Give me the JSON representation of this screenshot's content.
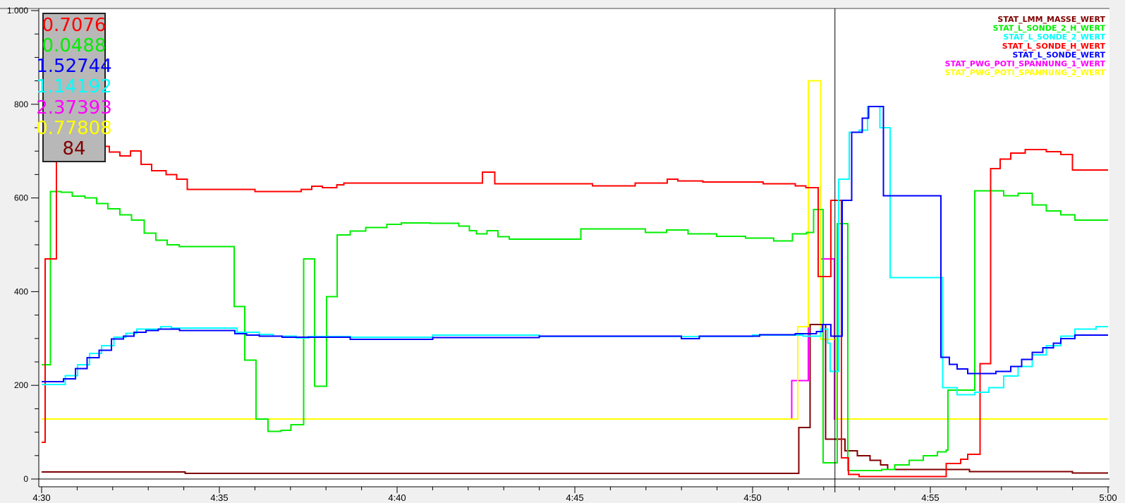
{
  "chart_data": {
    "type": "line",
    "step": true,
    "title": "",
    "xlabel": "",
    "ylabel": "",
    "xlim": [
      "4:30:00",
      "5:00:00"
    ],
    "ylim": [
      0,
      1000
    ],
    "x_ticks": [
      "4:30",
      "4:35",
      "4:40",
      "4:45",
      "4:50",
      "4:55",
      "5:00"
    ],
    "y_ticks": [
      {
        "value": 0,
        "label": "0"
      },
      {
        "value": 200,
        "label": "200"
      },
      {
        "value": 400,
        "label": "400"
      },
      {
        "value": 600,
        "label": "600"
      },
      {
        "value": 800,
        "label": "800"
      },
      {
        "value": 1000,
        "label": "1.000"
      }
    ],
    "grid": false,
    "legend_position": "top-right",
    "cursor": {
      "time": "4:52:19",
      "values": [
        {
          "text": "0.7076",
          "color": "#ff0000"
        },
        {
          "text": "0.0488",
          "color": "#00ee00"
        },
        {
          "text": "1.52744",
          "color": "#0000ff"
        },
        {
          "text": "1.14192",
          "color": "#00ffff"
        },
        {
          "text": "2.37393",
          "color": "#ff00ff"
        },
        {
          "text": "0.77808",
          "color": "#ffff00"
        },
        {
          "text": "84",
          "color": "#800000"
        }
      ]
    },
    "series": [
      {
        "name": "STAT_LMM_MASSE_WERT",
        "color": "#800000",
        "points": [
          [
            "4:30:00",
            15
          ],
          [
            "4:34:02",
            12
          ],
          [
            "4:51:18",
            110
          ],
          [
            "4:51:37",
            330
          ],
          [
            "4:52:03",
            85
          ],
          [
            "4:52:36",
            60
          ],
          [
            "4:52:57",
            50
          ],
          [
            "4:53:18",
            40
          ],
          [
            "4:53:36",
            30
          ],
          [
            "4:53:48",
            20
          ],
          [
            "4:56:06",
            16
          ],
          [
            "4:59:00",
            13
          ],
          [
            "5:00:00",
            13
          ]
        ]
      },
      {
        "name": "STAT_L_SONDE_2_H_WERT",
        "color": "#00ee00",
        "points": [
          [
            "4:30:00",
            244
          ],
          [
            "4:30:15",
            614
          ],
          [
            "4:30:33",
            612
          ],
          [
            "4:30:52",
            604
          ],
          [
            "4:31:13",
            600
          ],
          [
            "4:31:33",
            588
          ],
          [
            "4:31:52",
            577
          ],
          [
            "4:32:12",
            564
          ],
          [
            "4:32:32",
            553
          ],
          [
            "4:32:53",
            525
          ],
          [
            "4:33:13",
            510
          ],
          [
            "4:33:32",
            500
          ],
          [
            "4:33:52",
            496
          ],
          [
            "4:35:25",
            368
          ],
          [
            "4:35:43",
            254
          ],
          [
            "4:36:02",
            128
          ],
          [
            "4:36:22",
            102
          ],
          [
            "4:36:44",
            104
          ],
          [
            "4:37:01",
            116
          ],
          [
            "4:37:22",
            470
          ],
          [
            "4:37:41",
            198
          ],
          [
            "4:38:01",
            389
          ],
          [
            "4:38:19",
            521
          ],
          [
            "4:38:41",
            529
          ],
          [
            "4:39:07",
            537
          ],
          [
            "4:39:43",
            544
          ],
          [
            "4:40:07",
            547
          ],
          [
            "4:40:56",
            546
          ],
          [
            "4:41:44",
            540
          ],
          [
            "4:42:02",
            530
          ],
          [
            "4:42:14",
            523
          ],
          [
            "4:42:32",
            530
          ],
          [
            "4:42:50",
            517
          ],
          [
            "4:43:09",
            512
          ],
          [
            "4:45:10",
            534
          ],
          [
            "4:46:59",
            526
          ],
          [
            "4:47:35",
            532
          ],
          [
            "4:48:11",
            523
          ],
          [
            "4:48:59",
            518
          ],
          [
            "4:49:48",
            514
          ],
          [
            "4:50:36",
            508
          ],
          [
            "4:51:07",
            523
          ],
          [
            "4:51:31",
            526
          ],
          [
            "4:51:43",
            575
          ],
          [
            "4:51:59",
            35
          ],
          [
            "4:52:23",
            545
          ],
          [
            "4:52:41",
            18
          ],
          [
            "4:53:38",
            20
          ],
          [
            "4:54:00",
            30
          ],
          [
            "4:54:24",
            40
          ],
          [
            "4:54:48",
            50
          ],
          [
            "4:55:12",
            58
          ],
          [
            "4:55:27",
            62
          ],
          [
            "4:55:30",
            190
          ],
          [
            "4:56:15",
            615
          ],
          [
            "4:57:04",
            605
          ],
          [
            "4:57:28",
            610
          ],
          [
            "4:57:52",
            585
          ],
          [
            "4:58:16",
            572
          ],
          [
            "4:58:40",
            564
          ],
          [
            "4:59:04",
            553
          ],
          [
            "5:00:00",
            553
          ]
        ]
      },
      {
        "name": "STAT_L_SONDE_2_WERT",
        "color": "#00ffff",
        "points": [
          [
            "4:30:00",
            202
          ],
          [
            "4:30:40",
            221
          ],
          [
            "4:31:01",
            244
          ],
          [
            "4:31:21",
            268
          ],
          [
            "4:31:41",
            285
          ],
          [
            "4:32:02",
            303
          ],
          [
            "4:32:22",
            311
          ],
          [
            "4:32:41",
            320
          ],
          [
            "4:33:21",
            325
          ],
          [
            "4:33:39",
            322
          ],
          [
            "4:35:30",
            313
          ],
          [
            "4:36:07",
            309
          ],
          [
            "4:36:31",
            305
          ],
          [
            "4:37:10",
            301
          ],
          [
            "4:37:30",
            304
          ],
          [
            "4:38:41",
            303
          ],
          [
            "4:41:00",
            307
          ],
          [
            "4:44:00",
            304
          ],
          [
            "4:50:00",
            307
          ],
          [
            "4:51:25",
            305
          ],
          [
            "4:51:55",
            320
          ],
          [
            "4:52:07",
            290
          ],
          [
            "4:52:11",
            230
          ],
          [
            "4:52:25",
            640
          ],
          [
            "4:52:43",
            740
          ],
          [
            "4:53:00",
            745
          ],
          [
            "4:53:14",
            795
          ],
          [
            "4:53:35",
            750
          ],
          [
            "4:53:52",
            430
          ],
          [
            "4:55:21",
            195
          ],
          [
            "4:55:45",
            180
          ],
          [
            "4:56:15",
            185
          ],
          [
            "4:56:39",
            195
          ],
          [
            "4:57:04",
            220
          ],
          [
            "4:57:28",
            240
          ],
          [
            "4:57:52",
            265
          ],
          [
            "4:58:16",
            285
          ],
          [
            "4:58:40",
            305
          ],
          [
            "4:59:04",
            320
          ],
          [
            "4:59:40",
            325
          ],
          [
            "5:00:00",
            325
          ]
        ]
      },
      {
        "name": "STAT_L_SONDE_H_WERT",
        "color": "#ff0000",
        "points": [
          [
            "4:30:00",
            78
          ],
          [
            "4:30:06",
            470
          ],
          [
            "4:30:25",
            710
          ],
          [
            "4:31:54",
            698
          ],
          [
            "4:32:12",
            690
          ],
          [
            "4:32:30",
            700
          ],
          [
            "4:32:48",
            672
          ],
          [
            "4:33:06",
            658
          ],
          [
            "4:33:30",
            650
          ],
          [
            "4:33:48",
            640
          ],
          [
            "4:34:06",
            618
          ],
          [
            "4:36:00",
            614
          ],
          [
            "4:37:18",
            618
          ],
          [
            "4:37:36",
            625
          ],
          [
            "4:37:54",
            622
          ],
          [
            "4:38:18",
            628
          ],
          [
            "4:38:30",
            632
          ],
          [
            "4:42:24",
            655
          ],
          [
            "4:42:45",
            630
          ],
          [
            "4:45:30",
            626
          ],
          [
            "4:46:42",
            632
          ],
          [
            "4:47:36",
            640
          ],
          [
            "4:47:54",
            636
          ],
          [
            "4:48:36",
            634
          ],
          [
            "4:50:18",
            630
          ],
          [
            "4:51:12",
            626
          ],
          [
            "4:51:30",
            622
          ],
          [
            "4:51:51",
            432
          ],
          [
            "4:52:12",
            595
          ],
          [
            "4:52:30",
            45
          ],
          [
            "4:52:42",
            10
          ],
          [
            "4:53:00",
            5
          ],
          [
            "4:55:27",
            33
          ],
          [
            "4:55:51",
            42
          ],
          [
            "4:56:03",
            53
          ],
          [
            "4:56:24",
            246
          ],
          [
            "4:56:42",
            663
          ],
          [
            "4:56:58",
            683
          ],
          [
            "4:57:16",
            696
          ],
          [
            "4:57:40",
            703
          ],
          [
            "4:58:16",
            699
          ],
          [
            "4:58:40",
            693
          ],
          [
            "4:59:00",
            660
          ],
          [
            "5:00:00",
            660
          ]
        ]
      },
      {
        "name": "STAT_L_SONDE_WERT",
        "color": "#0000ff",
        "points": [
          [
            "4:30:00",
            208
          ],
          [
            "4:30:37",
            214
          ],
          [
            "4:30:57",
            236
          ],
          [
            "4:31:17",
            259
          ],
          [
            "4:31:37",
            275
          ],
          [
            "4:31:58",
            299
          ],
          [
            "4:32:18",
            305
          ],
          [
            "4:32:36",
            313
          ],
          [
            "4:32:56",
            317
          ],
          [
            "4:33:17",
            320
          ],
          [
            "4:33:53",
            317
          ],
          [
            "4:35:26",
            310
          ],
          [
            "4:35:46",
            307
          ],
          [
            "4:36:07",
            305
          ],
          [
            "4:36:46",
            303
          ],
          [
            "4:38:41",
            298
          ],
          [
            "4:41:00",
            302
          ],
          [
            "4:44:00",
            305
          ],
          [
            "4:48:00",
            300
          ],
          [
            "4:48:30",
            305
          ],
          [
            "4:50:12",
            308
          ],
          [
            "4:51:12",
            310
          ],
          [
            "4:51:48",
            315
          ],
          [
            "4:51:58",
            330
          ],
          [
            "4:52:12",
            305
          ],
          [
            "4:52:31",
            595
          ],
          [
            "4:52:47",
            740
          ],
          [
            "4:53:05",
            770
          ],
          [
            "4:53:16",
            795
          ],
          [
            "4:53:41",
            605
          ],
          [
            "4:55:18",
            260
          ],
          [
            "4:55:32",
            245
          ],
          [
            "4:55:45",
            235
          ],
          [
            "4:56:03",
            225
          ],
          [
            "4:56:51",
            230
          ],
          [
            "4:57:16",
            240
          ],
          [
            "4:57:34",
            255
          ],
          [
            "4:57:52",
            270
          ],
          [
            "4:58:10",
            280
          ],
          [
            "4:58:28",
            290
          ],
          [
            "4:58:40",
            300
          ],
          [
            "4:59:04",
            307
          ],
          [
            "5:00:00",
            307
          ]
        ]
      },
      {
        "name": "STAT_PWG_POTI_SPANNUNG_1_WERT",
        "color": "#ff00ff",
        "points": [
          [
            "4:30:00",
            128
          ],
          [
            "4:51:06",
            210
          ],
          [
            "4:51:34",
            850
          ],
          [
            "4:51:55",
            470
          ],
          [
            "4:52:18",
            128
          ],
          [
            "5:00:00",
            128
          ]
        ]
      },
      {
        "name": "STAT_PWG_POTI_SPANNUNG_2_WERT",
        "color": "#ffff00",
        "points": [
          [
            "4:30:00",
            128
          ],
          [
            "4:51:16",
            325
          ],
          [
            "4:51:34",
            850
          ],
          [
            "4:51:55",
            298
          ],
          [
            "4:52:20",
            128
          ],
          [
            "5:00:00",
            128
          ]
        ]
      }
    ]
  }
}
